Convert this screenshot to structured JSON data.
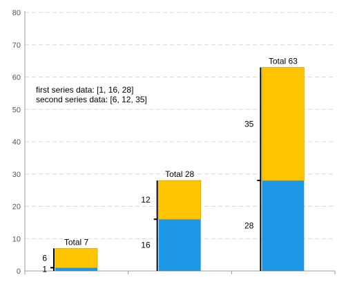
{
  "chart_data": {
    "type": "bar",
    "stacked": true,
    "categories": [
      "",
      "",
      ""
    ],
    "series": [
      {
        "values": [
          1,
          16,
          28
        ],
        "color": "#1e96e6"
      },
      {
        "values": [
          6,
          12,
          35
        ],
        "color": "#ffc400"
      }
    ],
    "totals": [
      "Total 7",
      "Total 28",
      "Total 63"
    ],
    "y_ticks": [
      0,
      10,
      20,
      30,
      40,
      50,
      60,
      70,
      80
    ],
    "ylim": [
      0,
      80
    ],
    "grid": true,
    "title": "",
    "xlabel": "",
    "ylabel": "",
    "annotations": [
      "first series data: [1, 16, 28]",
      "second series data: [6, 12, 35]"
    ]
  }
}
